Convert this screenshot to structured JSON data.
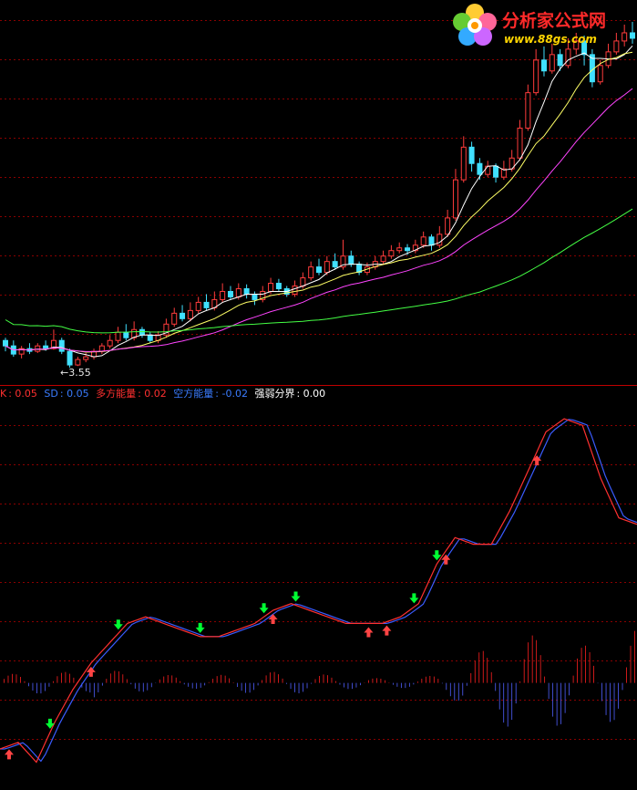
{
  "legend": {
    "k_label": "K",
    "k_value": "0.05",
    "sd_label": "SD",
    "sd_value": "0.05",
    "bull_label": "多方能量",
    "bull_value": "0.02",
    "bear_label": "空方能量",
    "bear_value": "-0.02",
    "bound_label": "强弱分界",
    "bound_value": "0.00"
  },
  "low_marker": "←3.55",
  "logo": {
    "title": "分析家公式网",
    "url": "www.88gs.com"
  },
  "colors": {
    "up": "#ff3c3c",
    "down": "#40e0ff",
    "ma5": "#ffffff",
    "ma10": "#ffff66",
    "ma20": "#ff44ff",
    "ma60": "#44ff44",
    "kline": "#ff3030",
    "sdline": "#3a5cff",
    "bull_bar": "#ff2020",
    "bear_bar": "#5060ff",
    "grid": "#8a0000",
    "sell_arrow": "#00ff33",
    "buy_arrow": "#ff4444"
  },
  "chart_data": [
    {
      "type": "candlestick",
      "title": "",
      "lowest_price_label": "3.55",
      "candles": [
        [
          4.05,
          3.95,
          4.1,
          3.85
        ],
        [
          3.95,
          3.8,
          4.05,
          3.75
        ],
        [
          3.8,
          3.9,
          3.95,
          3.72
        ],
        [
          3.9,
          3.85,
          4.0,
          3.8
        ],
        [
          3.85,
          3.95,
          4.0,
          3.82
        ],
        [
          3.95,
          3.9,
          4.05,
          3.86
        ],
        [
          3.9,
          4.05,
          4.25,
          3.88
        ],
        [
          4.05,
          3.85,
          4.1,
          3.8
        ],
        [
          3.85,
          3.6,
          3.9,
          3.55
        ],
        [
          3.6,
          3.7,
          3.75,
          3.58
        ],
        [
          3.7,
          3.75,
          3.82,
          3.65
        ],
        [
          3.75,
          3.85,
          3.9,
          3.7
        ],
        [
          3.85,
          3.95,
          4.0,
          3.8
        ],
        [
          3.95,
          4.05,
          4.15,
          3.9
        ],
        [
          4.05,
          4.2,
          4.3,
          4.0
        ],
        [
          4.2,
          4.1,
          4.35,
          4.05
        ],
        [
          4.1,
          4.25,
          4.4,
          4.05
        ],
        [
          4.25,
          4.15,
          4.3,
          4.1
        ],
        [
          4.15,
          4.05,
          4.2,
          4.0
        ],
        [
          4.05,
          4.15,
          4.22,
          4.0
        ],
        [
          4.15,
          4.35,
          4.45,
          4.1
        ],
        [
          4.35,
          4.55,
          4.65,
          4.3
        ],
        [
          4.55,
          4.45,
          4.7,
          4.4
        ],
        [
          4.45,
          4.6,
          4.75,
          4.4
        ],
        [
          4.6,
          4.75,
          4.85,
          4.55
        ],
        [
          4.75,
          4.65,
          4.9,
          4.6
        ],
        [
          4.65,
          4.8,
          4.95,
          4.6
        ],
        [
          4.8,
          4.95,
          5.1,
          4.75
        ],
        [
          4.95,
          4.85,
          5.05,
          4.8
        ],
        [
          4.85,
          5.0,
          5.1,
          4.8
        ],
        [
          5.0,
          4.9,
          5.08,
          4.82
        ],
        [
          4.9,
          4.8,
          4.95,
          4.7
        ],
        [
          4.8,
          4.95,
          5.05,
          4.75
        ],
        [
          4.95,
          5.1,
          5.2,
          4.9
        ],
        [
          5.1,
          5.0,
          5.18,
          4.95
        ],
        [
          5.0,
          4.9,
          5.05,
          4.85
        ],
        [
          4.9,
          5.05,
          5.15,
          4.85
        ],
        [
          5.05,
          5.2,
          5.3,
          5.0
        ],
        [
          5.2,
          5.4,
          5.5,
          5.15
        ],
        [
          5.4,
          5.3,
          5.55,
          5.25
        ],
        [
          5.3,
          5.5,
          5.6,
          5.25
        ],
        [
          5.5,
          5.4,
          5.65,
          5.35
        ],
        [
          5.4,
          5.6,
          5.9,
          5.35
        ],
        [
          5.6,
          5.45,
          5.7,
          5.4
        ],
        [
          5.45,
          5.3,
          5.5,
          5.25
        ],
        [
          5.3,
          5.4,
          5.48,
          5.25
        ],
        [
          5.4,
          5.5,
          5.6,
          5.35
        ],
        [
          5.5,
          5.6,
          5.7,
          5.45
        ],
        [
          5.6,
          5.7,
          5.8,
          5.55
        ],
        [
          5.7,
          5.75,
          5.85,
          5.65
        ],
        [
          5.75,
          5.7,
          5.82,
          5.62
        ],
        [
          5.7,
          5.8,
          5.9,
          5.65
        ],
        [
          5.8,
          5.95,
          6.05,
          5.75
        ],
        [
          5.95,
          5.8,
          6.0,
          5.7
        ],
        [
          5.8,
          6.0,
          6.15,
          5.75
        ],
        [
          6.0,
          6.3,
          6.45,
          5.95
        ],
        [
          6.3,
          7.0,
          7.2,
          6.25
        ],
        [
          7.0,
          7.6,
          7.8,
          6.95
        ],
        [
          7.6,
          7.3,
          7.7,
          7.15
        ],
        [
          7.3,
          7.1,
          7.4,
          7.0
        ],
        [
          7.1,
          7.25,
          7.35,
          7.05
        ],
        [
          7.25,
          7.05,
          7.3,
          6.95
        ],
        [
          7.05,
          7.2,
          7.35,
          7.0
        ],
        [
          7.2,
          7.4,
          7.55,
          7.15
        ],
        [
          7.4,
          7.95,
          8.1,
          7.35
        ],
        [
          7.95,
          8.6,
          8.75,
          7.9
        ],
        [
          8.6,
          9.2,
          9.4,
          8.55
        ],
        [
          9.2,
          9.0,
          9.45,
          8.9
        ],
        [
          9.0,
          9.3,
          9.5,
          8.95
        ],
        [
          9.3,
          9.1,
          9.4,
          9.0
        ],
        [
          9.1,
          9.4,
          9.6,
          9.05
        ],
        [
          9.4,
          9.55,
          9.7,
          9.3
        ],
        [
          9.55,
          9.3,
          9.65,
          9.1
        ],
        [
          9.3,
          8.8,
          9.4,
          8.7
        ],
        [
          8.8,
          9.1,
          9.2,
          8.75
        ],
        [
          9.1,
          9.35,
          9.5,
          9.05
        ],
        [
          9.35,
          9.55,
          9.7,
          9.3
        ],
        [
          9.55,
          9.7,
          9.85,
          9.45
        ],
        [
          9.7,
          9.6,
          9.9,
          9.5
        ]
      ],
      "ma": [
        {
          "name": "MA5",
          "color": "#ffffff"
        },
        {
          "name": "MA10",
          "color": "#ffff66"
        },
        {
          "name": "MA20",
          "color": "#ff44ff"
        },
        {
          "name": "MA60",
          "color": "#44ff44"
        }
      ]
    },
    {
      "type": "line",
      "title": "",
      "series": [
        {
          "name": "K",
          "color": "#ff3030"
        },
        {
          "name": "SD",
          "color": "#3a5cff"
        }
      ],
      "x": [
        0,
        4,
        8,
        12,
        16,
        20,
        24,
        28,
        32,
        36,
        40,
        44,
        48,
        52,
        56,
        60,
        64,
        68,
        72,
        76,
        80,
        84,
        88,
        92,
        96,
        100,
        104,
        108,
        112,
        116,
        120,
        124,
        128,
        132,
        136,
        140
      ],
      "k_values": [
        -0.1,
        -0.09,
        -0.12,
        -0.06,
        -0.01,
        0.03,
        0.06,
        0.09,
        0.1,
        0.09,
        0.08,
        0.07,
        0.07,
        0.08,
        0.09,
        0.11,
        0.12,
        0.11,
        0.1,
        0.09,
        0.09,
        0.09,
        0.1,
        0.12,
        0.18,
        0.22,
        0.21,
        0.21,
        0.26,
        0.32,
        0.38,
        0.4,
        0.39,
        0.31,
        0.25,
        0.24
      ],
      "buy_signals_x": [
        2,
        20,
        60,
        81,
        85,
        98,
        118
      ],
      "sell_signals_x": [
        11,
        26,
        44,
        58,
        65,
        91,
        96
      ],
      "bars": {
        "bull_name": "多方能量",
        "bear_name": "空方能量"
      },
      "zero_line": "强弱分界",
      "ylim": [
        -0.14,
        0.44
      ]
    }
  ]
}
